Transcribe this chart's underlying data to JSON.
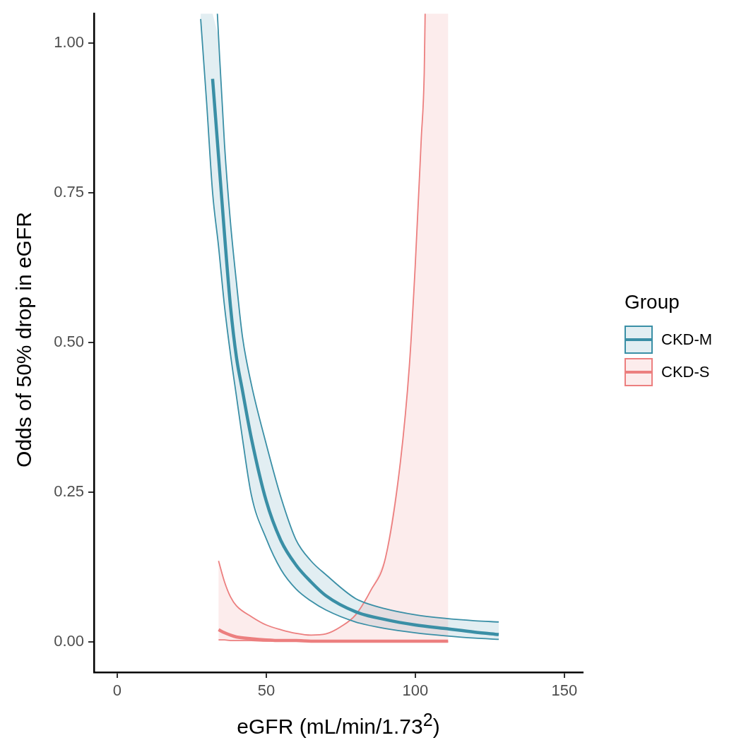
{
  "chart_data": {
    "type": "line",
    "xlabel": "eGFR (mL/min/1.73$^{2}$)",
    "ylabel": "Odds of 50% drop in eGFR",
    "legend_title": "Group",
    "legend": "right",
    "grid": false,
    "xlim": [
      -7.8,
      156.2
    ],
    "xticks": [
      0,
      50,
      100,
      150
    ],
    "ylim": [
      -0.051,
      1.049
    ],
    "yticks": [
      {
        "value": 0,
        "label": "0.00"
      },
      {
        "value": 0.25,
        "label": "0.25"
      },
      {
        "value": 0.5,
        "label": "0.50"
      },
      {
        "value": 0.75,
        "label": "0.75"
      },
      {
        "value": 1,
        "label": "1.00"
      }
    ],
    "series": [
      {
        "name": "CKD-M",
        "color": "#3a8fa6",
        "x": [
          28,
          30,
          32,
          34,
          36,
          38,
          40,
          42,
          45,
          50,
          55,
          60,
          65,
          70,
          80,
          90,
          100,
          110,
          120,
          128
        ],
        "values": [
          null,
          null,
          0.94,
          0.81,
          0.68,
          0.56,
          0.475,
          0.42,
          0.34,
          0.235,
          0.168,
          0.128,
          0.1,
          0.077,
          0.05,
          0.037,
          0.028,
          0.022,
          0.016,
          0.012
        ],
        "lower": [
          1.04,
          0.9,
          0.75,
          0.66,
          0.56,
          0.48,
          0.41,
          0.34,
          0.245,
          0.172,
          0.12,
          0.088,
          0.068,
          0.053,
          0.033,
          0.022,
          0.015,
          0.01,
          0.006,
          0.004
        ],
        "upper": [
          1.049,
          1.049,
          1.049,
          1.01,
          0.83,
          0.7,
          0.6,
          0.51,
          0.43,
          0.33,
          0.24,
          0.17,
          0.135,
          0.112,
          0.072,
          0.055,
          0.045,
          0.039,
          0.035,
          0.033
        ]
      },
      {
        "name": "CKD-S",
        "color": "#ec7f7f",
        "x": [
          34,
          36,
          38,
          40,
          45,
          50,
          55,
          60,
          65,
          70,
          75,
          80,
          85,
          90,
          95,
          98,
          100,
          102,
          103,
          103.3,
          111
        ],
        "values": [
          0.02,
          0.015,
          0.011,
          0.008,
          0.005,
          0.003,
          0.002,
          0.002,
          0.001,
          0.001,
          0.001,
          0.001,
          0.001,
          0.001,
          0.001,
          0.001,
          0.001,
          0.001,
          0.001,
          0.001,
          0.001
        ],
        "lower": [
          0.003,
          0.003,
          0.002,
          0.002,
          0.002,
          0.001,
          0.001,
          0.001,
          0.001,
          0,
          0,
          0,
          0,
          0,
          0,
          0,
          0,
          0,
          0,
          0,
          0
        ],
        "upper": [
          0.135,
          0.1,
          0.075,
          0.06,
          0.042,
          0.028,
          0.02,
          0.014,
          0.011,
          0.013,
          0.025,
          0.045,
          0.085,
          0.14,
          0.3,
          0.46,
          0.63,
          0.84,
          0.95,
          1.049,
          1.049
        ]
      },
      {
        "color": "#3a8fa6",
        "x": [
          28,
          30,
          32,
          34,
          36,
          38,
          40,
          42,
          45,
          50,
          55,
          60,
          65,
          70,
          80,
          90,
          100,
          110,
          120,
          128
        ],
        "values": [
          1.04,
          0.9,
          0.75,
          0.66,
          0.56,
          0.48,
          0.41,
          0.34,
          0.245,
          0.172,
          0.12,
          0.088,
          0.068,
          0.053,
          0.033,
          0.022,
          0.015,
          0.01,
          0.006,
          0.004
        ]
      },
      {
        "color": "#3a8fa6",
        "x": [
          33.6,
          34,
          36,
          38,
          40,
          42,
          45,
          50,
          55,
          60,
          65,
          70,
          80,
          90,
          100,
          110,
          120,
          128
        ],
        "values": [
          1.049,
          1.01,
          0.83,
          0.7,
          0.6,
          0.51,
          0.43,
          0.33,
          0.24,
          0.17,
          0.135,
          0.112,
          0.072,
          0.055,
          0.045,
          0.039,
          0.035,
          0.033
        ]
      },
      {
        "color": "#ec7f7f",
        "x": [
          34,
          36,
          38,
          40,
          45,
          50,
          55,
          60,
          65,
          70,
          75,
          80,
          85,
          90,
          95,
          98,
          100,
          102,
          103,
          103.3
        ],
        "values": [
          0.135,
          0.1,
          0.075,
          0.06,
          0.042,
          0.028,
          0.02,
          0.014,
          0.011,
          0.013,
          0.025,
          0.045,
          0.085,
          0.14,
          0.3,
          0.46,
          0.63,
          0.84,
          0.95,
          1.049
        ]
      },
      {
        "color": "#ec7f7f",
        "x": [
          34,
          36,
          38,
          40,
          45,
          50,
          55,
          60,
          65,
          70,
          75,
          80,
          85,
          90,
          95,
          98,
          100,
          102,
          103,
          103.3,
          111
        ],
        "values": [
          0.003,
          0.003,
          0.002,
          0.002,
          0.002,
          0.001,
          0.001,
          0.001,
          0.001,
          0,
          0,
          0,
          0,
          0,
          0,
          0,
          0,
          0,
          0,
          0,
          0
        ]
      }
    ]
  }
}
